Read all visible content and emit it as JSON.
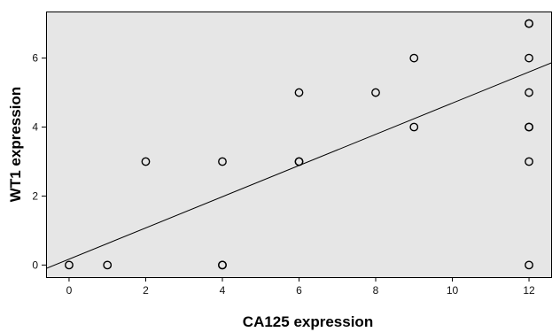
{
  "chart_data": {
    "type": "scatter",
    "title": "",
    "xlabel": "CA125 expression",
    "ylabel": "WT1 expression",
    "xlim": [
      -0.6,
      12.6
    ],
    "ylim": [
      -0.35,
      7.35
    ],
    "x_ticks": [
      0,
      2,
      4,
      6,
      8,
      10,
      12
    ],
    "y_ticks": [
      0,
      2,
      4,
      6
    ],
    "grid": false,
    "legend": "none",
    "colors": {
      "plot_background": "#e6e6e6",
      "marker_edge": "#000000",
      "fit_line": "#000000"
    },
    "points": [
      {
        "x": 0,
        "y": 0
      },
      {
        "x": 1,
        "y": 0
      },
      {
        "x": 2,
        "y": 3
      },
      {
        "x": 4,
        "y": 3
      },
      {
        "x": 4,
        "y": 0
      },
      {
        "x": 4,
        "y": 0
      },
      {
        "x": 6,
        "y": 5
      },
      {
        "x": 6,
        "y": 3
      },
      {
        "x": 6,
        "y": 3
      },
      {
        "x": 8,
        "y": 5
      },
      {
        "x": 9,
        "y": 6
      },
      {
        "x": 9,
        "y": 4
      },
      {
        "x": 12,
        "y": 7
      },
      {
        "x": 12,
        "y": 7
      },
      {
        "x": 12,
        "y": 6
      },
      {
        "x": 12,
        "y": 5
      },
      {
        "x": 12,
        "y": 4
      },
      {
        "x": 12,
        "y": 4
      },
      {
        "x": 12,
        "y": 3
      },
      {
        "x": 12,
        "y": 0
      }
    ],
    "fit_line": {
      "x": [
        -0.6,
        12.6
      ],
      "y": [
        -0.1,
        5.87
      ]
    }
  }
}
